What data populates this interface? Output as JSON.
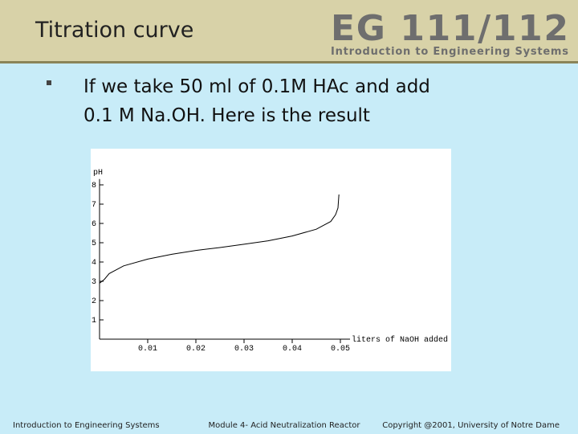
{
  "header": {
    "title": "Titration curve",
    "logo": "EG 111/112",
    "logo_subtitle": "Introduction to Engineering Systems"
  },
  "bullet": {
    "lines": [
      "If we take 50 ml of 0.1M HAc and add",
      "0.1 M Na.OH.  Here is the result"
    ]
  },
  "footer": {
    "left": "Introduction to Engineering Systems",
    "center": "Module 4- Acid Neutralization Reactor",
    "right": "Copyright @2001, University of Notre Dame"
  },
  "chart_data": {
    "type": "line",
    "ylabel": "pH",
    "xlabel": "liters of NaOH added",
    "x": [
      0,
      0.001,
      0.002,
      0.005,
      0.01,
      0.015,
      0.02,
      0.025,
      0.03,
      0.035,
      0.04,
      0.045,
      0.048,
      0.049,
      0.0495,
      0.0497
    ],
    "series": [
      {
        "name": "pH",
        "color": "#000000",
        "values": [
          2.9,
          3.1,
          3.4,
          3.8,
          4.15,
          4.4,
          4.6,
          4.75,
          4.92,
          5.1,
          5.35,
          5.7,
          6.1,
          6.45,
          6.8,
          7.5
        ]
      }
    ],
    "xlim": [
      0,
      0.052
    ],
    "ylim": [
      0,
      8.3
    ],
    "xticks": [
      0.01,
      0.02,
      0.03,
      0.04,
      0.05
    ],
    "yticks": [
      1,
      2,
      3,
      4,
      5,
      6,
      7,
      8
    ]
  }
}
